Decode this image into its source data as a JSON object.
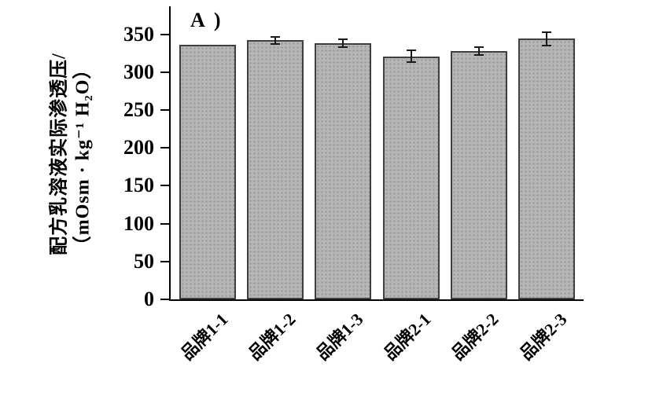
{
  "chart_data": {
    "type": "bar",
    "panel_label": "A )",
    "categories": [
      "品牌1-1",
      "品牌1-2",
      "品牌1-3",
      "品牌2-1",
      "品牌2-2",
      "品牌2-3"
    ],
    "values": [
      336,
      342,
      338,
      321,
      328,
      344
    ],
    "errors": [
      0,
      5,
      5,
      8,
      5,
      9
    ],
    "ylabel_line1": "配方乳溶液实际渗透压/",
    "ylabel_line2": "（mOsm · kg⁻¹ H₂O）",
    "ytick_labels": [
      "0",
      "50",
      "100",
      "150",
      "200",
      "250",
      "300",
      "350"
    ],
    "ytick_values": [
      0,
      50,
      100,
      150,
      200,
      250,
      300,
      350
    ],
    "ylim": [
      0,
      387
    ],
    "grid": false,
    "legend": null,
    "colors": {
      "bar_fill": "#b6b6b6",
      "bar_stipple": "#989898",
      "bar_border": "#3f3f3f",
      "axis": "#000000",
      "error_bar": "#1a1a1a",
      "text": "#000000",
      "background": "#ffffff"
    }
  }
}
